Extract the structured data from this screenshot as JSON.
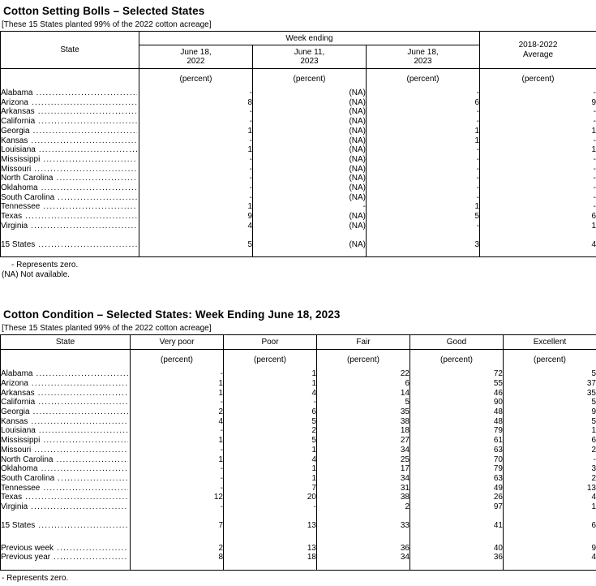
{
  "colors": {
    "text": "#000000",
    "border": "#000000",
    "background": "#ffffff"
  },
  "bolls_table": {
    "title": "Cotton Setting Bolls – Selected States",
    "note": "[These 15 States planted 99% of the 2022 cotton acreage]",
    "corner_header": "State",
    "group_header": "Week ending",
    "col_headers": [
      "June 18,\n2022",
      "June 11,\n2023",
      "June 18,\n2023"
    ],
    "avg_header": "2018-2022\nAverage",
    "unit_row": [
      "(percent)",
      "(percent)",
      "(percent)",
      "(percent)"
    ],
    "rows": [
      [
        "Alabama",
        "-",
        "(NA)",
        "-",
        "-"
      ],
      [
        "Arizona",
        "8",
        "(NA)",
        "6",
        "9"
      ],
      [
        "Arkansas",
        "-",
        "(NA)",
        "-",
        "-"
      ],
      [
        "California",
        "-",
        "(NA)",
        "-",
        "-"
      ],
      [
        "Georgia",
        "1",
        "(NA)",
        "1",
        "1"
      ],
      [
        "Kansas",
        "-",
        "(NA)",
        "1",
        "-"
      ],
      [
        "Louisiana",
        "1",
        "(NA)",
        "-",
        "1"
      ],
      [
        "Mississippi",
        "-",
        "(NA)",
        "-",
        "-"
      ],
      [
        "Missouri",
        "-",
        "(NA)",
        "-",
        "-"
      ],
      [
        "North Carolina",
        "-",
        "(NA)",
        "-",
        "-"
      ],
      [
        "Oklahoma",
        "-",
        "(NA)",
        "-",
        "-"
      ],
      [
        "South Carolina",
        "-",
        "(NA)",
        "-",
        "-"
      ],
      [
        "Tennessee",
        "1",
        "-",
        "1",
        "-"
      ],
      [
        "Texas",
        "9",
        "(NA)",
        "5",
        "6"
      ],
      [
        "Virginia",
        "4",
        "(NA)",
        "-",
        "1"
      ]
    ],
    "total_rows": [
      [
        "15 States",
        "5",
        "(NA)",
        "3",
        "4"
      ]
    ],
    "footnotes": [
      "- Represents zero.",
      "(NA) Not available."
    ]
  },
  "condition_table": {
    "title": "Cotton Condition – Selected States: Week Ending June 18, 2023",
    "note": "[These 15 States planted 99% of the 2022 cotton acreage]",
    "col_headers": [
      "State",
      "Very poor",
      "Poor",
      "Fair",
      "Good",
      "Excellent"
    ],
    "unit_row": [
      "(percent)",
      "(percent)",
      "(percent)",
      "(percent)",
      "(percent)"
    ],
    "rows": [
      [
        "Alabama",
        "-",
        "1",
        "22",
        "72",
        "5"
      ],
      [
        "Arizona",
        "1",
        "1",
        "6",
        "55",
        "37"
      ],
      [
        "Arkansas",
        "1",
        "4",
        "14",
        "46",
        "35"
      ],
      [
        "California",
        "-",
        "-",
        "5",
        "90",
        "5"
      ],
      [
        "Georgia",
        "2",
        "6",
        "35",
        "48",
        "9"
      ],
      [
        "Kansas",
        "4",
        "5",
        "38",
        "48",
        "5"
      ],
      [
        "Louisiana",
        "-",
        "2",
        "18",
        "79",
        "1"
      ],
      [
        "Mississippi",
        "1",
        "5",
        "27",
        "61",
        "6"
      ],
      [
        "Missouri",
        "-",
        "1",
        "34",
        "63",
        "2"
      ],
      [
        "North Carolina",
        "1",
        "4",
        "25",
        "70",
        "-"
      ],
      [
        "Oklahoma",
        "-",
        "1",
        "17",
        "79",
        "3"
      ],
      [
        "South Carolina",
        "-",
        "1",
        "34",
        "63",
        "2"
      ],
      [
        "Tennessee",
        "-",
        "7",
        "31",
        "49",
        "13"
      ],
      [
        "Texas",
        "12",
        "20",
        "38",
        "26",
        "4"
      ],
      [
        "Virginia",
        "-",
        "-",
        "2",
        "97",
        "1"
      ]
    ],
    "total_rows": [
      [
        "15 States",
        "7",
        "13",
        "33",
        "41",
        "6"
      ]
    ],
    "comparison_rows": [
      [
        "Previous week",
        "2",
        "13",
        "36",
        "40",
        "9"
      ],
      [
        "Previous year",
        "8",
        "18",
        "34",
        "36",
        "4"
      ]
    ],
    "footnotes": [
      "- Represents zero."
    ]
  }
}
